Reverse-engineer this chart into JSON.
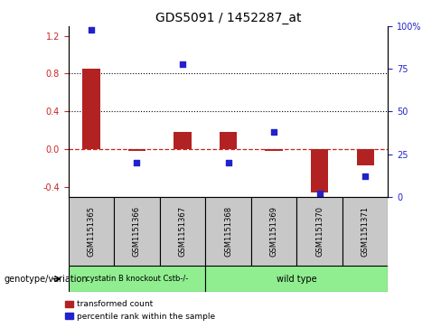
{
  "title": "GDS5091 / 1452287_at",
  "samples": [
    "GSM1151365",
    "GSM1151366",
    "GSM1151367",
    "GSM1151368",
    "GSM1151369",
    "GSM1151370",
    "GSM1151371"
  ],
  "red_bars": [
    0.85,
    -0.02,
    0.18,
    0.18,
    -0.02,
    -0.45,
    -0.17
  ],
  "blue_pct": [
    98,
    20,
    78,
    20,
    38,
    2,
    12
  ],
  "groups": [
    {
      "label": "cystatin B knockout Cstb-/-",
      "start": 0,
      "end": 3,
      "color": "#90ee90"
    },
    {
      "label": "wild type",
      "start": 3,
      "end": 7,
      "color": "#90ee90"
    }
  ],
  "group_row_color": "#c8c8c8",
  "ylim_left": [
    -0.5,
    1.3
  ],
  "ylim_right": [
    0,
    100
  ],
  "yticks_left": [
    -0.4,
    0.0,
    0.4,
    0.8,
    1.2
  ],
  "yticks_right": [
    0,
    25,
    50,
    75,
    100
  ],
  "red_bar_color": "#b22222",
  "blue_dot_color": "#2222cc",
  "dashed_zero_color": "#cc2222",
  "dotted_line_color": "#000000",
  "legend_red": "transformed count",
  "legend_blue": "percentile rank within the sample",
  "genotype_label": "genotype/variation",
  "title_fontsize": 10,
  "tick_fontsize": 7,
  "label_fontsize": 7
}
